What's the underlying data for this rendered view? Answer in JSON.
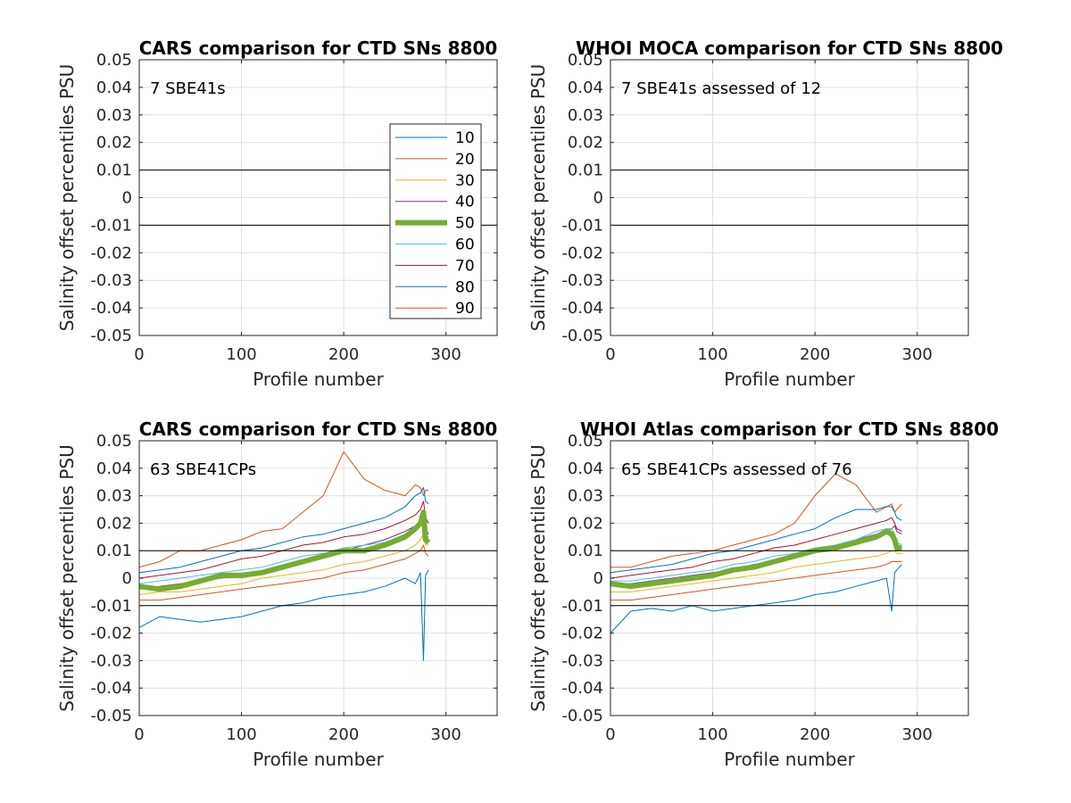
{
  "chart_data": [
    {
      "type": "line",
      "title": "CARS comparison for CTD SNs 8800",
      "xlabel": "Profile number",
      "ylabel": "Salinity offset percentiles PSU",
      "xlim": [
        0,
        350
      ],
      "ylim": [
        -0.05,
        0.05
      ],
      "xticks": [
        0,
        100,
        200,
        300
      ],
      "yticks": [
        -0.05,
        -0.04,
        -0.03,
        -0.02,
        -0.01,
        0,
        0.01,
        0.02,
        0.03,
        0.04,
        0.05
      ],
      "ytick_labels": [
        "-0.05",
        "-0.04",
        "-0.03",
        "-0.02",
        "-0.01",
        "0",
        "0.01",
        "0.02",
        "0.03",
        "0.04",
        "0.05"
      ],
      "reference_lines": [
        0.01,
        -0.01
      ],
      "grid": true,
      "annotation": "7 SBE41s",
      "series": [],
      "legend": {
        "placement": "right-inside",
        "entries": [
          {
            "label": "10",
            "color": "#0072BD",
            "bold": false
          },
          {
            "label": "20",
            "color": "#D95319",
            "bold": false
          },
          {
            "label": "30",
            "color": "#EDB120",
            "bold": false
          },
          {
            "label": "40",
            "color": "#7E2F8E",
            "bold": false
          },
          {
            "label": "50",
            "color": "#77AC30",
            "bold": true
          },
          {
            "label": "60",
            "color": "#4DBEEE",
            "bold": false
          },
          {
            "label": "70",
            "color": "#A2142F",
            "bold": false
          },
          {
            "label": "80",
            "color": "#0072BD",
            "bold": false
          },
          {
            "label": "90",
            "color": "#D95319",
            "bold": false
          }
        ]
      }
    },
    {
      "type": "line",
      "title": "WHOI MOCA comparison for CTD SNs 8800",
      "xlabel": "Profile number",
      "ylabel": "Salinity offset percentiles PSU",
      "xlim": [
        0,
        350
      ],
      "ylim": [
        -0.05,
        0.05
      ],
      "xticks": [
        0,
        100,
        200,
        300
      ],
      "yticks": [
        -0.05,
        -0.04,
        -0.03,
        -0.02,
        -0.01,
        0,
        0.01,
        0.02,
        0.03,
        0.04,
        0.05
      ],
      "ytick_labels": [
        "-0.05",
        "-0.04",
        "-0.03",
        "-0.02",
        "-0.01",
        "0",
        "0.01",
        "0.02",
        "0.03",
        "0.04",
        "0.05"
      ],
      "reference_lines": [
        0.01,
        -0.01
      ],
      "grid": true,
      "annotation": "7 SBE41s assessed of 12",
      "series": []
    },
    {
      "type": "line",
      "title": "CARS comparison for CTD SNs 8800",
      "xlabel": "Profile number",
      "ylabel": "Salinity offset percentiles PSU",
      "xlim": [
        0,
        350
      ],
      "ylim": [
        -0.05,
        0.05
      ],
      "xticks": [
        0,
        100,
        200,
        300
      ],
      "yticks": [
        -0.05,
        -0.04,
        -0.03,
        -0.02,
        -0.01,
        0,
        0.01,
        0.02,
        0.03,
        0.04,
        0.05
      ],
      "ytick_labels": [
        "-0.05",
        "-0.04",
        "-0.03",
        "-0.02",
        "-0.01",
        "0",
        "0.01",
        "0.02",
        "0.03",
        "0.04",
        "0.05"
      ],
      "reference_lines": [
        0.01,
        -0.01
      ],
      "grid": true,
      "annotation": "63 SBE41CPs",
      "x": [
        0,
        20,
        40,
        60,
        80,
        100,
        120,
        140,
        160,
        180,
        200,
        220,
        240,
        260,
        270,
        275,
        278,
        280,
        283
      ],
      "series": [
        {
          "name": "10",
          "color": "#0072BD",
          "width": 1,
          "values": [
            -0.018,
            -0.014,
            -0.015,
            -0.016,
            -0.015,
            -0.014,
            -0.012,
            -0.01,
            -0.009,
            -0.007,
            -0.006,
            -0.005,
            -0.003,
            0.0,
            -0.002,
            0.002,
            -0.03,
            0.001,
            0.003
          ]
        },
        {
          "name": "20",
          "color": "#D95319",
          "width": 1,
          "values": [
            0.004,
            0.006,
            0.01,
            0.01,
            0.012,
            0.014,
            0.017,
            0.018,
            0.024,
            0.03,
            0.046,
            0.036,
            0.032,
            0.03,
            0.034,
            0.033,
            0.03,
            0.032,
            0.032
          ]
        },
        {
          "name": "30",
          "color": "#EDB120",
          "width": 1,
          "values": [
            -0.006,
            -0.005,
            -0.005,
            -0.004,
            -0.003,
            -0.002,
            0.0,
            0.001,
            0.002,
            0.003,
            0.005,
            0.006,
            0.008,
            0.01,
            0.012,
            0.014,
            0.016,
            0.012,
            0.012
          ]
        },
        {
          "name": "40",
          "color": "#7E2F8E",
          "width": 1,
          "values": [
            -0.004,
            -0.003,
            -0.002,
            -0.001,
            0.0,
            0.001,
            0.002,
            0.004,
            0.006,
            0.008,
            0.01,
            0.012,
            0.014,
            0.017,
            0.019,
            0.02,
            0.022,
            0.018,
            0.016
          ]
        },
        {
          "name": "50",
          "color": "#77AC30",
          "width": 6,
          "values": [
            -0.003,
            -0.004,
            -0.003,
            -0.001,
            0.001,
            0.001,
            0.002,
            0.004,
            0.006,
            0.008,
            0.01,
            0.01,
            0.012,
            0.015,
            0.018,
            0.02,
            0.024,
            0.014,
            0.013
          ]
        },
        {
          "name": "60",
          "color": "#4DBEEE",
          "width": 1,
          "values": [
            -0.002,
            -0.001,
            0.0,
            0.001,
            0.002,
            0.003,
            0.004,
            0.006,
            0.008,
            0.009,
            0.011,
            0.012,
            0.013,
            0.016,
            0.018,
            0.019,
            0.021,
            0.016,
            0.015
          ]
        },
        {
          "name": "70",
          "color": "#A2142F",
          "width": 1,
          "values": [
            0.0,
            0.001,
            0.002,
            0.003,
            0.005,
            0.007,
            0.008,
            0.01,
            0.012,
            0.013,
            0.015,
            0.016,
            0.018,
            0.021,
            0.023,
            0.025,
            0.028,
            0.022,
            0.02
          ]
        },
        {
          "name": "80",
          "color": "#0072BD",
          "width": 1,
          "values": [
            0.002,
            0.003,
            0.004,
            0.006,
            0.008,
            0.01,
            0.011,
            0.013,
            0.015,
            0.016,
            0.018,
            0.02,
            0.022,
            0.026,
            0.03,
            0.031,
            0.033,
            0.028,
            0.027
          ]
        },
        {
          "name": "90",
          "color": "#D95319",
          "width": 1,
          "values": [
            -0.008,
            -0.008,
            -0.007,
            -0.006,
            -0.005,
            -0.004,
            -0.003,
            -0.002,
            -0.001,
            0.0,
            0.002,
            0.003,
            0.005,
            0.007,
            0.009,
            0.01,
            0.012,
            0.009,
            0.008
          ]
        }
      ]
    },
    {
      "type": "line",
      "title": "WHOI Atlas comparison for CTD SNs 8800",
      "xlabel": "Profile number",
      "ylabel": "Salinity offset percentiles PSU",
      "xlim": [
        0,
        350
      ],
      "ylim": [
        -0.05,
        0.05
      ],
      "xticks": [
        0,
        100,
        200,
        300
      ],
      "yticks": [
        -0.05,
        -0.04,
        -0.03,
        -0.02,
        -0.01,
        0,
        0.01,
        0.02,
        0.03,
        0.04,
        0.05
      ],
      "ytick_labels": [
        "-0.05",
        "-0.04",
        "-0.03",
        "-0.02",
        "-0.01",
        "0",
        "0.01",
        "0.02",
        "0.03",
        "0.04",
        "0.05"
      ],
      "reference_lines": [
        0.01,
        -0.01
      ],
      "grid": true,
      "annotation": "65 SBE41CPs assessed of 76",
      "x": [
        0,
        20,
        40,
        60,
        80,
        100,
        120,
        140,
        160,
        180,
        200,
        220,
        240,
        260,
        270,
        275,
        278,
        280,
        285
      ],
      "series": [
        {
          "name": "10",
          "color": "#0072BD",
          "width": 1,
          "values": [
            -0.02,
            -0.012,
            -0.011,
            -0.012,
            -0.01,
            -0.012,
            -0.011,
            -0.01,
            -0.009,
            -0.008,
            -0.006,
            -0.005,
            -0.003,
            -0.001,
            0.0,
            -0.012,
            0.002,
            0.003,
            0.005
          ]
        },
        {
          "name": "20",
          "color": "#D95319",
          "width": 1,
          "values": [
            0.004,
            0.004,
            0.006,
            0.008,
            0.009,
            0.01,
            0.012,
            0.014,
            0.016,
            0.02,
            0.03,
            0.038,
            0.034,
            0.024,
            0.026,
            0.027,
            0.024,
            0.025,
            0.027
          ]
        },
        {
          "name": "30",
          "color": "#EDB120",
          "width": 1,
          "values": [
            -0.005,
            -0.005,
            -0.004,
            -0.003,
            -0.002,
            -0.001,
            0.0,
            0.001,
            0.002,
            0.004,
            0.005,
            0.006,
            0.007,
            0.008,
            0.009,
            0.01,
            0.01,
            0.009,
            0.009
          ]
        },
        {
          "name": "40",
          "color": "#7E2F8E",
          "width": 1,
          "values": [
            -0.002,
            -0.002,
            -0.001,
            0.0,
            0.001,
            0.002,
            0.003,
            0.005,
            0.006,
            0.008,
            0.01,
            0.012,
            0.014,
            0.016,
            0.017,
            0.018,
            0.019,
            0.017,
            0.016
          ]
        },
        {
          "name": "50",
          "color": "#77AC30",
          "width": 6,
          "values": [
            -0.002,
            -0.003,
            -0.002,
            -0.001,
            0.0,
            0.001,
            0.003,
            0.004,
            0.006,
            0.008,
            0.01,
            0.011,
            0.013,
            0.015,
            0.017,
            0.016,
            0.014,
            0.011,
            0.011
          ]
        },
        {
          "name": "60",
          "color": "#4DBEEE",
          "width": 1,
          "values": [
            -0.001,
            -0.001,
            0.0,
            0.001,
            0.002,
            0.003,
            0.005,
            0.006,
            0.008,
            0.009,
            0.011,
            0.012,
            0.014,
            0.017,
            0.018,
            0.018,
            0.016,
            0.013,
            0.012
          ]
        },
        {
          "name": "70",
          "color": "#A2142F",
          "width": 1,
          "values": [
            0.0,
            0.001,
            0.002,
            0.003,
            0.004,
            0.006,
            0.007,
            0.009,
            0.011,
            0.012,
            0.014,
            0.016,
            0.018,
            0.02,
            0.021,
            0.022,
            0.02,
            0.018,
            0.017
          ]
        },
        {
          "name": "80",
          "color": "#0072BD",
          "width": 1,
          "values": [
            0.002,
            0.003,
            0.004,
            0.005,
            0.007,
            0.009,
            0.01,
            0.012,
            0.014,
            0.016,
            0.018,
            0.022,
            0.025,
            0.025,
            0.026,
            0.026,
            0.024,
            0.022,
            0.021
          ]
        },
        {
          "name": "90",
          "color": "#D95319",
          "width": 1,
          "values": [
            -0.008,
            -0.008,
            -0.007,
            -0.006,
            -0.005,
            -0.004,
            -0.003,
            -0.002,
            -0.001,
            0.0,
            0.001,
            0.002,
            0.003,
            0.004,
            0.005,
            0.006,
            0.006,
            0.006,
            0.006
          ]
        }
      ]
    }
  ]
}
